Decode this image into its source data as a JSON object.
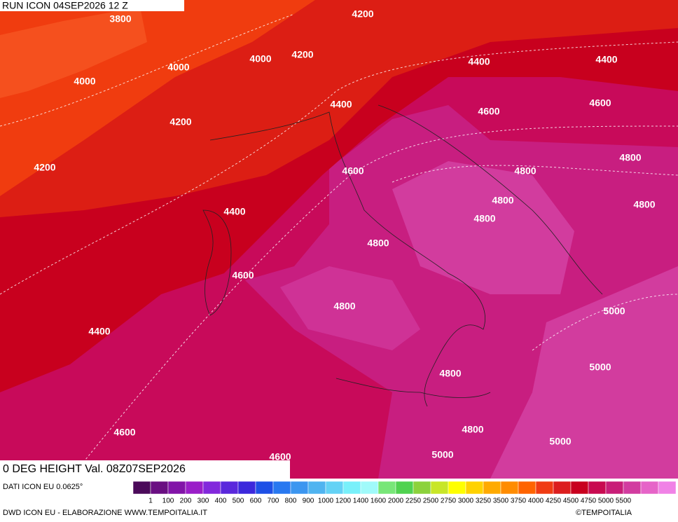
{
  "header": {
    "run": "RUN ICON 04SEP2026 12 Z",
    "valid": "0 DEG HEIGHT Val. 08Z07SEP2026",
    "source": "DATI ICON EU 0.0625°",
    "footer_left": "DWD ICON EU - ELABORAZIONE WWW.TEMPOITALIA.IT",
    "footer_right": "©TEMPOITALIA"
  },
  "contour_labels": [
    3800,
    4200,
    4000,
    4000,
    4200,
    4400,
    4400,
    4000,
    4200,
    4400,
    4600,
    4600,
    4200,
    4600,
    4800,
    4800,
    4800,
    4800,
    4400,
    4800,
    4800,
    4600,
    4800,
    5000,
    4400,
    5000,
    4800,
    4600,
    4800,
    5000,
    5000,
    4600
  ],
  "colorbar": {
    "colors": [
      "#4b0a5a",
      "#6a0f82",
      "#8214a8",
      "#9a1ec8",
      "#8228dc",
      "#5a28dc",
      "#3c28dc",
      "#1e50e6",
      "#2878f0",
      "#3c96f0",
      "#50b4f0",
      "#64d2f5",
      "#78f0fa",
      "#a0fafa",
      "#78e678",
      "#50d250",
      "#8cd23c",
      "#c8e628",
      "#ffff00",
      "#ffd200",
      "#ffaa00",
      "#ff8c00",
      "#ff6400",
      "#f03c14",
      "#dc1e1e",
      "#c8001e",
      "#c80a50",
      "#c81e78",
      "#d23ca0",
      "#e664c8",
      "#f082e6"
    ],
    "labels": [
      1,
      100,
      200,
      300,
      400,
      500,
      600,
      700,
      800,
      900,
      1000,
      1200,
      1400,
      1600,
      2000,
      2250,
      2500,
      2750,
      3000,
      3250,
      3500,
      3750,
      4000,
      4250,
      4500,
      4750,
      5000,
      5500
    ]
  }
}
